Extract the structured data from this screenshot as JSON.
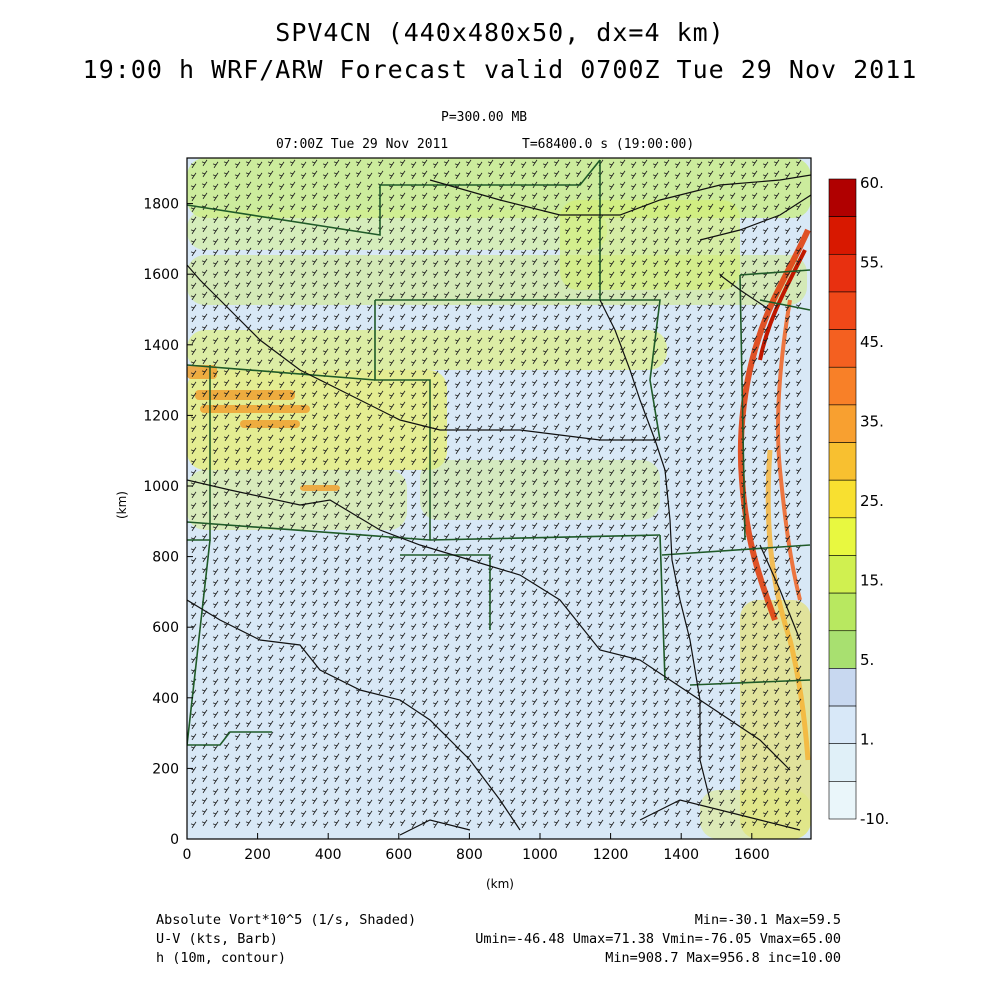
{
  "titles": {
    "line1": "SPV4CN (440x480x50, dx=4 km)",
    "line2": "19:00 h WRF/ARW Forecast valid 0700Z Tue 29 Nov 2011",
    "level": "P=300.00 MB",
    "valid": "07:00Z Tue 29 Nov 2011",
    "time": "T=68400.0 s (19:00:00)"
  },
  "axes": {
    "x_label": "(km)",
    "y_label": "(km)",
    "x_ticks": [
      "0",
      "200",
      "400",
      "600",
      "800",
      "1000",
      "1200",
      "1400",
      "1600"
    ],
    "y_ticks": [
      "0",
      "200",
      "400",
      "600",
      "800",
      "1000",
      "1200",
      "1400",
      "1600",
      "1800"
    ]
  },
  "colorbar": {
    "labels": [
      "60.",
      "55.",
      "45.",
      "35.",
      "25.",
      "15.",
      "5.",
      "1.",
      "-10."
    ],
    "colors": [
      "#b00000",
      "#d81800",
      "#e83010",
      "#f04818",
      "#f46020",
      "#f88028",
      "#f8a030",
      "#f8c030",
      "#f8e030",
      "#e8f840",
      "#d0f050",
      "#b8e860",
      "#a8e070",
      "#c8d8f0",
      "#d8e8f8",
      "#e0f0f8",
      "#eaf6fa"
    ]
  },
  "footer": {
    "field1_name": "Absolute Vort*10^5 (1/s, Shaded)",
    "field1_stats": "Min=-30.1 Max=59.5",
    "field2_name": "U-V (kts, Barb)",
    "field2_stats": "Umin=-46.48 Umax=71.38 Vmin=-76.05 Vmax=65.00",
    "field3_name": "h (10m, contour)",
    "field3_stats": "Min=908.7 Max=956.8 inc=10.00"
  }
}
